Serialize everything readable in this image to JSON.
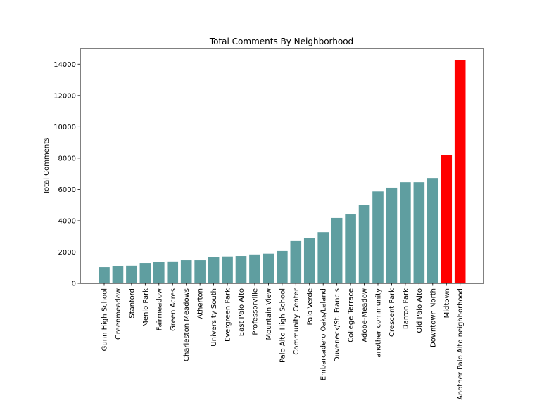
{
  "chart_data": {
    "type": "bar",
    "title": "Total Comments By Neighborhood",
    "xlabel": "",
    "ylabel": "Total Comments",
    "ylim": [
      0,
      15000
    ],
    "yticks": [
      0,
      2000,
      4000,
      6000,
      8000,
      10000,
      12000,
      14000
    ],
    "grid": false,
    "default_color": "#5f9ea0",
    "highlight_color": "#ff0000",
    "categories": [
      "Gunn High School",
      "Greenmeadow",
      "Stanford",
      "Menlo Park",
      "Fairmeadow",
      "Green Acres",
      "Charleston Meadows",
      "Atherton",
      "University South",
      "Evergreen Park",
      "East Palo Alto",
      "Professorville",
      "Mountain View",
      "Palo Alto High School",
      "Community Center",
      "Palo Verde",
      "Embarcadero Oaks/Leland",
      "Duveneck/St. Francis",
      "College Terrace",
      "Adobe-Meadow",
      "another community",
      "Crescent Park",
      "Barron Park",
      "Old Palo Alto",
      "Downtown North",
      "Midtown",
      "Another Palo Alto neighborhood"
    ],
    "values": [
      1030,
      1080,
      1130,
      1300,
      1350,
      1400,
      1480,
      1480,
      1680,
      1720,
      1750,
      1850,
      1900,
      2070,
      2700,
      2880,
      3270,
      4180,
      4400,
      5020,
      5870,
      6110,
      6460,
      6460,
      6730,
      8200,
      14250
    ],
    "highlight": [
      false,
      false,
      false,
      false,
      false,
      false,
      false,
      false,
      false,
      false,
      false,
      false,
      false,
      false,
      false,
      false,
      false,
      false,
      false,
      false,
      false,
      false,
      false,
      false,
      false,
      true,
      true
    ]
  }
}
